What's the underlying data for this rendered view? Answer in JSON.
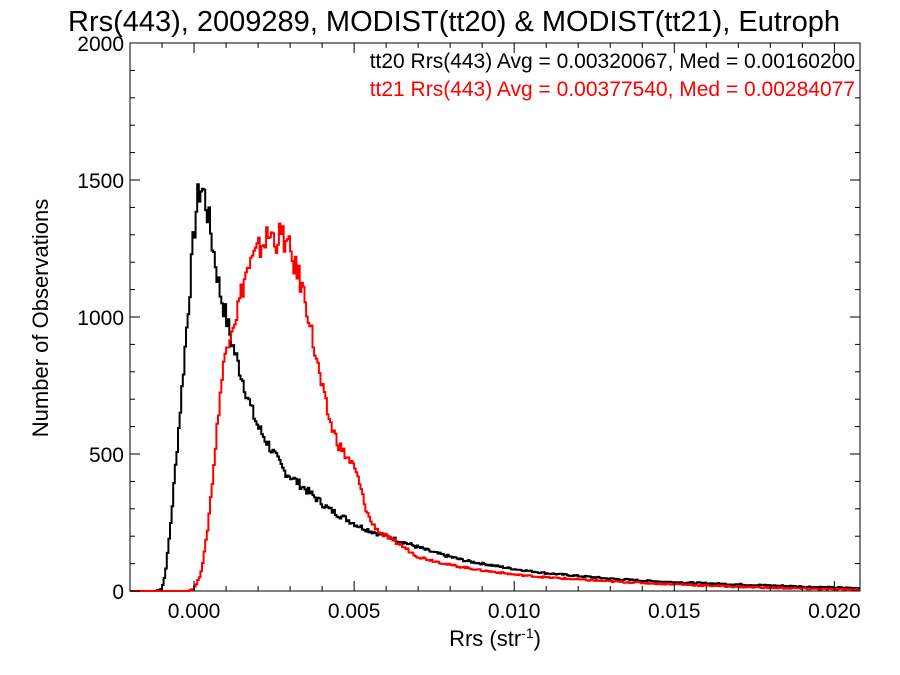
{
  "chart_data": {
    "type": "line",
    "step": true,
    "title": "Rrs(443), 2009289, MODIST(tt20) & MODIST(tt21), Eutroph",
    "xlabel": "Rrs (str",
    "xlabel_sup": "-1",
    "xlabel_end": ")",
    "ylabel": "Number of Observations",
    "xlim": [
      -0.002,
      0.0208
    ],
    "ylim": [
      0,
      2000
    ],
    "x_ticks": [
      {
        "value": 0.0,
        "label": "0.000"
      },
      {
        "value": 0.005,
        "label": "0.005"
      },
      {
        "value": 0.01,
        "label": "0.010"
      },
      {
        "value": 0.015,
        "label": "0.015"
      },
      {
        "value": 0.02,
        "label": "0.020"
      }
    ],
    "y_ticks": [
      {
        "value": 0,
        "label": "0"
      },
      {
        "value": 500,
        "label": "500"
      },
      {
        "value": 1000,
        "label": "1000"
      },
      {
        "value": 1500,
        "label": "1500"
      },
      {
        "value": 2000,
        "label": "2000"
      }
    ],
    "grid": false,
    "legend_position": "top-right",
    "series": [
      {
        "name": "tt20",
        "legend_text": "tt20 Rrs(443) Avg = 0.00320067, Med = 0.00160200",
        "color": "#000000",
        "points": [
          [
            -0.0012,
            0
          ],
          [
            -0.001,
            10
          ],
          [
            -0.0009,
            60
          ],
          [
            -0.0008,
            160
          ],
          [
            -0.0007,
            280
          ],
          [
            -0.0006,
            420
          ],
          [
            -0.0005,
            560
          ],
          [
            -0.0004,
            700
          ],
          [
            -0.0003,
            850
          ],
          [
            -0.0002,
            1000
          ],
          [
            -0.0001,
            1150
          ],
          [
            0.0,
            1300
          ],
          [
            0.0001,
            1420
          ],
          [
            0.0002,
            1470
          ],
          [
            0.0003,
            1460
          ],
          [
            0.0004,
            1400
          ],
          [
            0.0005,
            1330
          ],
          [
            0.0006,
            1250
          ],
          [
            0.0007,
            1180
          ],
          [
            0.0008,
            1100
          ],
          [
            0.0009,
            1050
          ],
          [
            0.001,
            1000
          ],
          [
            0.0011,
            950
          ],
          [
            0.0012,
            900
          ],
          [
            0.0013,
            860
          ],
          [
            0.0014,
            820
          ],
          [
            0.0015,
            780
          ],
          [
            0.0016,
            740
          ],
          [
            0.0017,
            700
          ],
          [
            0.0018,
            660
          ],
          [
            0.0019,
            630
          ],
          [
            0.002,
            600
          ],
          [
            0.0021,
            580
          ],
          [
            0.0022,
            560
          ],
          [
            0.0023,
            540
          ],
          [
            0.0024,
            520
          ],
          [
            0.0025,
            500
          ],
          [
            0.0026,
            480
          ],
          [
            0.0027,
            460
          ],
          [
            0.0028,
            440
          ],
          [
            0.003,
            420
          ],
          [
            0.0032,
            400
          ],
          [
            0.0034,
            380
          ],
          [
            0.0036,
            360
          ],
          [
            0.0038,
            340
          ],
          [
            0.004,
            320
          ],
          [
            0.0042,
            300
          ],
          [
            0.0045,
            280
          ],
          [
            0.0048,
            260
          ],
          [
            0.0051,
            240
          ],
          [
            0.0055,
            220
          ],
          [
            0.006,
            200
          ],
          [
            0.0065,
            180
          ],
          [
            0.007,
            160
          ],
          [
            0.0075,
            140
          ],
          [
            0.008,
            125
          ],
          [
            0.0085,
            110
          ],
          [
            0.009,
            100
          ],
          [
            0.0095,
            90
          ],
          [
            0.01,
            80
          ],
          [
            0.011,
            65
          ],
          [
            0.012,
            55
          ],
          [
            0.013,
            45
          ],
          [
            0.014,
            38
          ],
          [
            0.015,
            32
          ],
          [
            0.016,
            28
          ],
          [
            0.017,
            24
          ],
          [
            0.018,
            20
          ],
          [
            0.019,
            16
          ],
          [
            0.02,
            12
          ],
          [
            0.0208,
            10
          ]
        ]
      },
      {
        "name": "tt21",
        "legend_text": "tt21 Rrs(443) Avg = 0.00377540, Med = 0.00284077",
        "color": "#ff0000",
        "points": [
          [
            -0.0002,
            0
          ],
          [
            0.0,
            10
          ],
          [
            0.0001,
            30
          ],
          [
            0.0002,
            60
          ],
          [
            0.0003,
            120
          ],
          [
            0.0004,
            200
          ],
          [
            0.0005,
            310
          ],
          [
            0.0006,
            430
          ],
          [
            0.0007,
            560
          ],
          [
            0.0008,
            700
          ],
          [
            0.0009,
            800
          ],
          [
            0.001,
            880
          ],
          [
            0.0011,
            940
          ],
          [
            0.0012,
            980
          ],
          [
            0.0013,
            1000
          ],
          [
            0.0014,
            1050
          ],
          [
            0.0015,
            1100
          ],
          [
            0.0016,
            1150
          ],
          [
            0.0017,
            1180
          ],
          [
            0.0018,
            1200
          ],
          [
            0.0019,
            1220
          ],
          [
            0.002,
            1240
          ],
          [
            0.0021,
            1260
          ],
          [
            0.0022,
            1280
          ],
          [
            0.0023,
            1290
          ],
          [
            0.0024,
            1300
          ],
          [
            0.0025,
            1290
          ],
          [
            0.0026,
            1280
          ],
          [
            0.0027,
            1300
          ],
          [
            0.0028,
            1290
          ],
          [
            0.0029,
            1260
          ],
          [
            0.003,
            1240
          ],
          [
            0.0031,
            1200
          ],
          [
            0.0032,
            1170
          ],
          [
            0.0033,
            1140
          ],
          [
            0.0034,
            1100
          ],
          [
            0.0035,
            1050
          ],
          [
            0.0036,
            1000
          ],
          [
            0.0037,
            920
          ],
          [
            0.0038,
            860
          ],
          [
            0.0039,
            800
          ],
          [
            0.004,
            740
          ],
          [
            0.0041,
            690
          ],
          [
            0.0042,
            640
          ],
          [
            0.0043,
            600
          ],
          [
            0.0044,
            570
          ],
          [
            0.0045,
            540
          ],
          [
            0.0046,
            520
          ],
          [
            0.0047,
            500
          ],
          [
            0.0048,
            485
          ],
          [
            0.0049,
            470
          ],
          [
            0.005,
            450
          ],
          [
            0.0051,
            420
          ],
          [
            0.0052,
            380
          ],
          [
            0.0053,
            330
          ],
          [
            0.0054,
            290
          ],
          [
            0.0055,
            260
          ],
          [
            0.0056,
            240
          ],
          [
            0.0057,
            230
          ],
          [
            0.0058,
            215
          ],
          [
            0.006,
            200
          ],
          [
            0.0062,
            185
          ],
          [
            0.0065,
            165
          ],
          [
            0.0068,
            140
          ],
          [
            0.007,
            125
          ],
          [
            0.0075,
            110
          ],
          [
            0.008,
            95
          ],
          [
            0.0085,
            85
          ],
          [
            0.009,
            75
          ],
          [
            0.0095,
            68
          ],
          [
            0.01,
            60
          ],
          [
            0.011,
            50
          ],
          [
            0.012,
            42
          ],
          [
            0.013,
            35
          ],
          [
            0.014,
            30
          ],
          [
            0.015,
            25
          ],
          [
            0.016,
            20
          ],
          [
            0.017,
            16
          ],
          [
            0.018,
            12
          ],
          [
            0.019,
            9
          ],
          [
            0.02,
            6
          ],
          [
            0.0208,
            5
          ]
        ]
      }
    ]
  }
}
